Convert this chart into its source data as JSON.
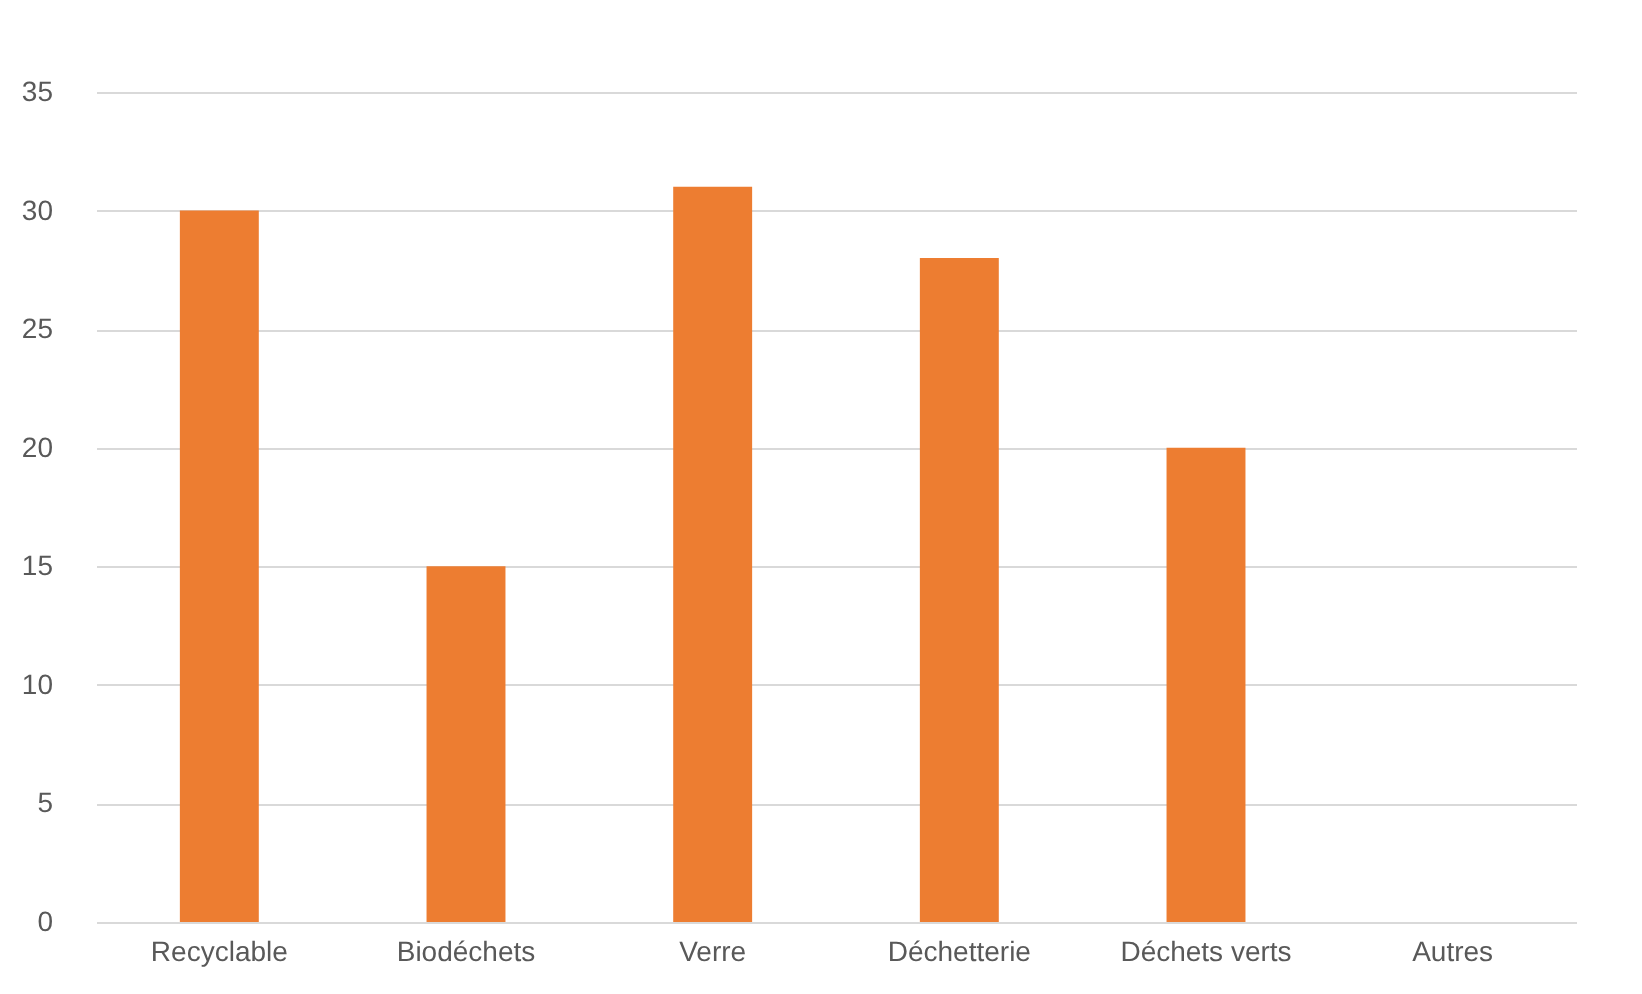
{
  "chart_data": {
    "type": "bar",
    "categories": [
      "Recyclable",
      "Biodéchets",
      "Verre",
      "Déchetterie",
      "Déchets verts",
      "Autres"
    ],
    "values": [
      30,
      15,
      31,
      28,
      20,
      0
    ],
    "color": "#ed7d31",
    "ylim": [
      0,
      35
    ],
    "yticks": [
      0,
      5,
      10,
      15,
      20,
      25,
      30,
      35
    ],
    "grid": "y"
  }
}
